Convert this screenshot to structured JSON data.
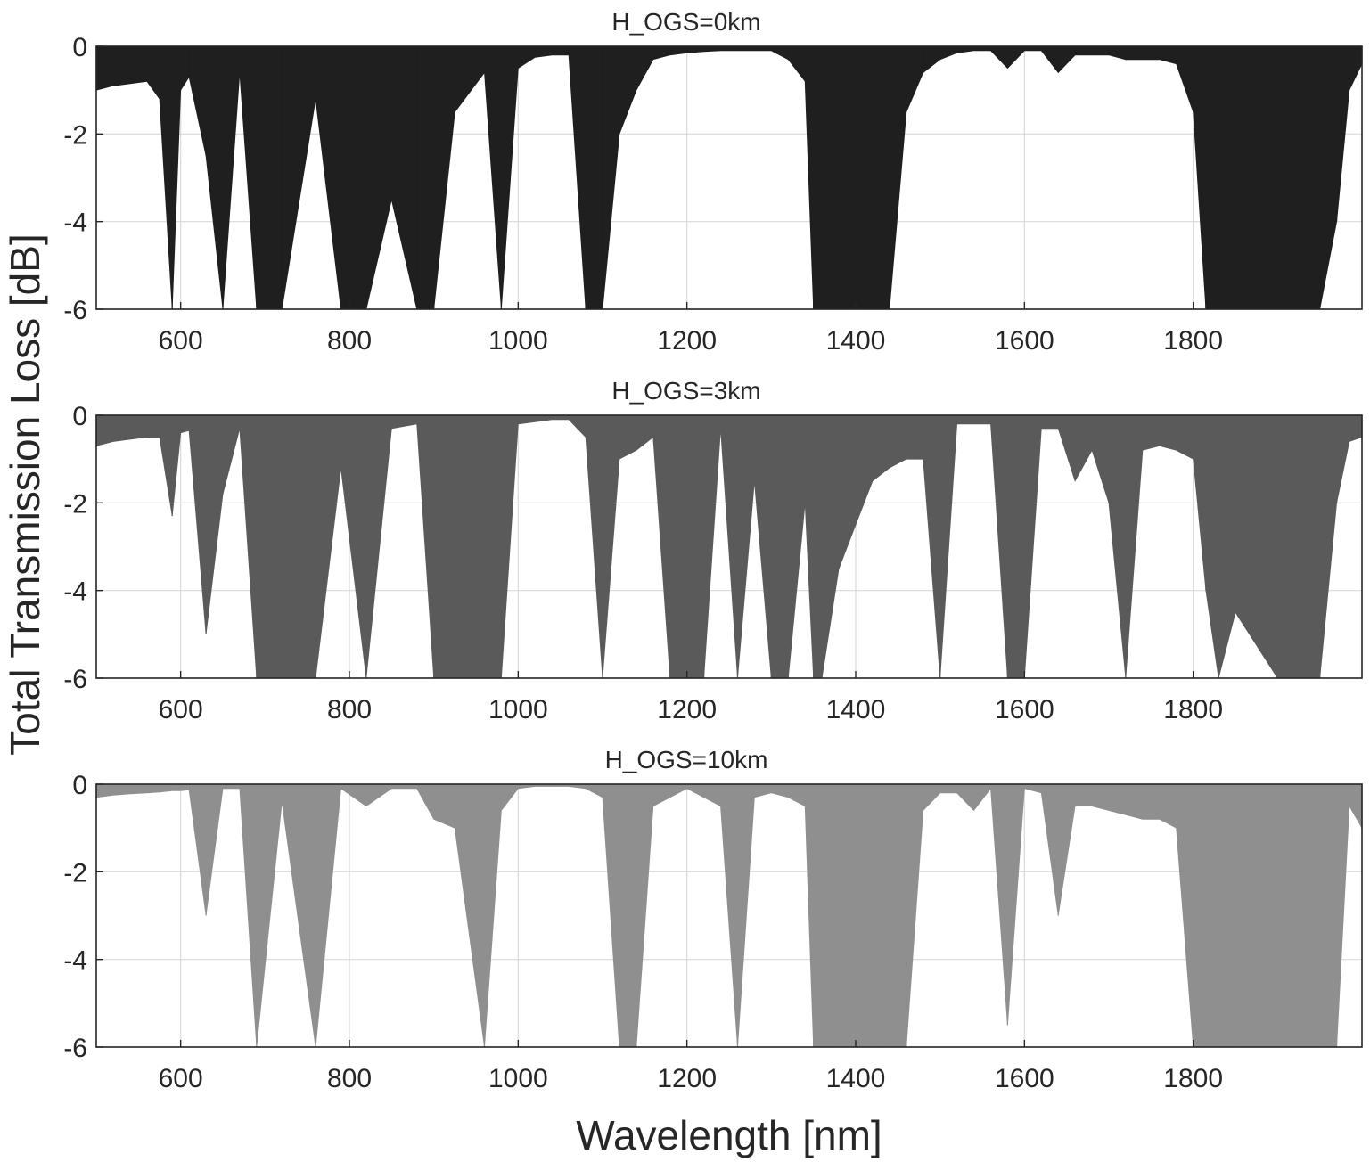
{
  "ylabel": "Total Transmission Loss [dB]",
  "xlabel": "Wavelength [nm]",
  "chart_data": [
    {
      "type": "area",
      "title": "H_OGS=0km",
      "color": "#1f1f1f",
      "xlim": [
        500,
        2000
      ],
      "ylim": [
        -6,
        0
      ],
      "xticks": [
        600,
        800,
        1000,
        1200,
        1400,
        1600,
        1800
      ],
      "yticks": [
        0,
        -2,
        -4,
        -6
      ],
      "grid": true,
      "x": [
        500,
        520,
        540,
        560,
        575,
        590,
        600,
        610,
        630,
        650,
        670,
        690,
        720,
        760,
        790,
        820,
        850,
        880,
        900,
        925,
        960,
        980,
        1000,
        1020,
        1040,
        1060,
        1080,
        1100,
        1120,
        1140,
        1160,
        1180,
        1200,
        1220,
        1240,
        1260,
        1280,
        1300,
        1320,
        1340,
        1350,
        1360,
        1380,
        1400,
        1420,
        1440,
        1460,
        1480,
        1500,
        1520,
        1540,
        1560,
        1580,
        1600,
        1620,
        1640,
        1660,
        1680,
        1700,
        1720,
        1740,
        1760,
        1780,
        1800,
        1815,
        1830,
        1850,
        1900,
        1950,
        1970,
        1985,
        2000
      ],
      "y": [
        -1.0,
        -0.9,
        -0.85,
        -0.8,
        -1.2,
        -6,
        -1.0,
        -0.7,
        -2.5,
        -6,
        -0.6,
        -6,
        -6,
        -1.2,
        -6,
        -6,
        -3.5,
        -6,
        -6,
        -1.5,
        -0.6,
        -6,
        -0.5,
        -0.25,
        -0.2,
        -0.2,
        -6,
        -6,
        -2.0,
        -1.0,
        -0.3,
        -0.2,
        -0.15,
        -0.12,
        -0.1,
        -0.1,
        -0.1,
        -0.1,
        -0.3,
        -0.8,
        -6,
        -6,
        -6,
        -6,
        -6,
        -6,
        -1.5,
        -0.6,
        -0.3,
        -0.15,
        -0.1,
        -0.1,
        -0.5,
        -0.1,
        -0.1,
        -0.6,
        -0.2,
        -0.2,
        -0.2,
        -0.3,
        -0.3,
        -0.3,
        -0.4,
        -1.5,
        -6,
        -6,
        -6,
        -6,
        -6,
        -4.0,
        -1.0,
        -0.4
      ]
    },
    {
      "type": "area",
      "title": "H_OGS=3km",
      "color": "#5a5a5a",
      "xlim": [
        500,
        2000
      ],
      "ylim": [
        -6,
        0
      ],
      "xticks": [
        600,
        800,
        1000,
        1200,
        1400,
        1600,
        1800
      ],
      "yticks": [
        0,
        -2,
        -4,
        -6
      ],
      "grid": true,
      "x": [
        500,
        520,
        540,
        560,
        575,
        590,
        600,
        610,
        630,
        650,
        670,
        690,
        720,
        760,
        790,
        820,
        850,
        880,
        900,
        925,
        960,
        980,
        1000,
        1020,
        1040,
        1060,
        1080,
        1100,
        1120,
        1140,
        1160,
        1180,
        1200,
        1220,
        1240,
        1260,
        1280,
        1300,
        1320,
        1340,
        1350,
        1360,
        1380,
        1400,
        1420,
        1440,
        1460,
        1480,
        1500,
        1520,
        1540,
        1560,
        1580,
        1600,
        1620,
        1640,
        1660,
        1680,
        1700,
        1720,
        1740,
        1760,
        1780,
        1800,
        1815,
        1830,
        1850,
        1900,
        1950,
        1970,
        1985,
        2000
      ],
      "y": [
        -0.7,
        -0.6,
        -0.55,
        -0.5,
        -0.5,
        -2.3,
        -0.4,
        -0.35,
        -5.0,
        -1.8,
        -0.3,
        -6,
        -6,
        -6,
        -1.2,
        -6,
        -0.3,
        -0.2,
        -6,
        -6,
        -6,
        -6,
        -0.2,
        -0.15,
        -0.1,
        -0.1,
        -0.5,
        -6,
        -1.0,
        -0.8,
        -0.5,
        -6,
        -6,
        -6,
        -0.3,
        -6,
        -1.5,
        -6,
        -6,
        -2.0,
        -6,
        -6,
        -3.5,
        -2.5,
        -1.5,
        -1.2,
        -1.0,
        -1.0,
        -6,
        -0.2,
        -0.2,
        -0.2,
        -6,
        -6,
        -0.3,
        -0.3,
        -1.5,
        -0.8,
        -2.0,
        -6,
        -0.8,
        -0.7,
        -0.8,
        -1.0,
        -4.0,
        -6,
        -4.5,
        -6,
        -6,
        -2.0,
        -0.6,
        -0.5
      ]
    },
    {
      "type": "area",
      "title": "H_OGS=10km",
      "color": "#8f8f8f",
      "xlim": [
        500,
        2000
      ],
      "ylim": [
        -6,
        0
      ],
      "xticks": [
        600,
        800,
        1000,
        1200,
        1400,
        1600,
        1800
      ],
      "yticks": [
        0,
        -2,
        -4,
        -6
      ],
      "grid": true,
      "x": [
        500,
        520,
        540,
        560,
        575,
        590,
        600,
        610,
        630,
        650,
        670,
        690,
        720,
        760,
        790,
        820,
        850,
        880,
        900,
        925,
        960,
        980,
        1000,
        1020,
        1040,
        1060,
        1080,
        1100,
        1120,
        1140,
        1160,
        1180,
        1200,
        1220,
        1240,
        1260,
        1280,
        1300,
        1320,
        1340,
        1350,
        1360,
        1380,
        1400,
        1420,
        1440,
        1460,
        1480,
        1500,
        1520,
        1540,
        1560,
        1580,
        1600,
        1620,
        1640,
        1660,
        1680,
        1700,
        1720,
        1740,
        1760,
        1780,
        1800,
        1815,
        1830,
        1850,
        1900,
        1950,
        1970,
        1985,
        2000
      ],
      "y": [
        -0.3,
        -0.25,
        -0.22,
        -0.2,
        -0.18,
        -0.15,
        -0.15,
        -0.13,
        -3.0,
        -0.1,
        -0.1,
        -6,
        -0.4,
        -6,
        -0.1,
        -0.5,
        -0.1,
        -0.1,
        -0.8,
        -1.0,
        -6,
        -0.6,
        -0.1,
        -0.05,
        -0.05,
        -0.05,
        -0.1,
        -0.3,
        -6,
        -6,
        -0.5,
        -0.3,
        -0.1,
        -0.3,
        -0.5,
        -6,
        -0.3,
        -0.2,
        -0.3,
        -0.5,
        -6,
        -6,
        -6,
        -6,
        -6,
        -6,
        -6,
        -0.6,
        -0.2,
        -0.2,
        -0.6,
        -0.1,
        -5.5,
        -0.1,
        -0.2,
        -3.0,
        -0.5,
        -0.5,
        -0.6,
        -0.7,
        -0.8,
        -0.8,
        -1.0,
        -6,
        -6,
        -6,
        -6,
        -6,
        -6,
        -6,
        -0.5,
        -1.0
      ]
    }
  ]
}
